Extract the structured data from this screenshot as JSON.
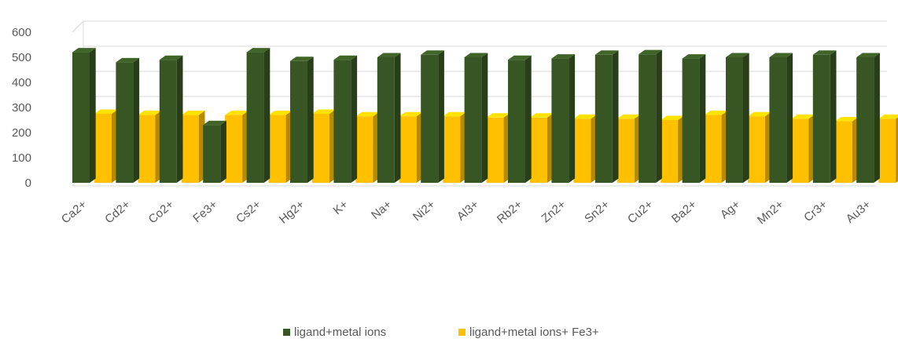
{
  "chart_data": {
    "type": "bar",
    "categories": [
      "Ca2+",
      "Cd2+",
      "Co2+",
      "Fe3+",
      "Cs2+",
      "Hg2+",
      "K+",
      "Na+",
      "Ni2+",
      "Al3+",
      "Rb2+",
      "Zn2+",
      "Sn2+",
      "Cu2+",
      "Ba2+",
      "Ag+",
      "Mn2+",
      "Cr3+",
      "Au3+"
    ],
    "series": [
      {
        "name": "ligand+metal ions",
        "color": "#375623",
        "values": [
          520,
          480,
          490,
          230,
          520,
          485,
          490,
          500,
          510,
          500,
          490,
          495,
          510,
          512,
          495,
          500,
          500,
          510,
          500
        ]
      },
      {
        "name": "ligand+metal ions+ Fe3+",
        "color": "#FFC000",
        "values": [
          275,
          270,
          270,
          270,
          270,
          275,
          265,
          265,
          265,
          260,
          260,
          255,
          255,
          250,
          270,
          265,
          255,
          245,
          255
        ]
      }
    ],
    "ylim": [
      0,
      600
    ],
    "yticks": [
      0,
      100,
      200,
      300,
      400,
      500,
      600
    ],
    "grid": true,
    "legend": "bottom",
    "title": "",
    "xlabel": "",
    "ylabel": ""
  }
}
